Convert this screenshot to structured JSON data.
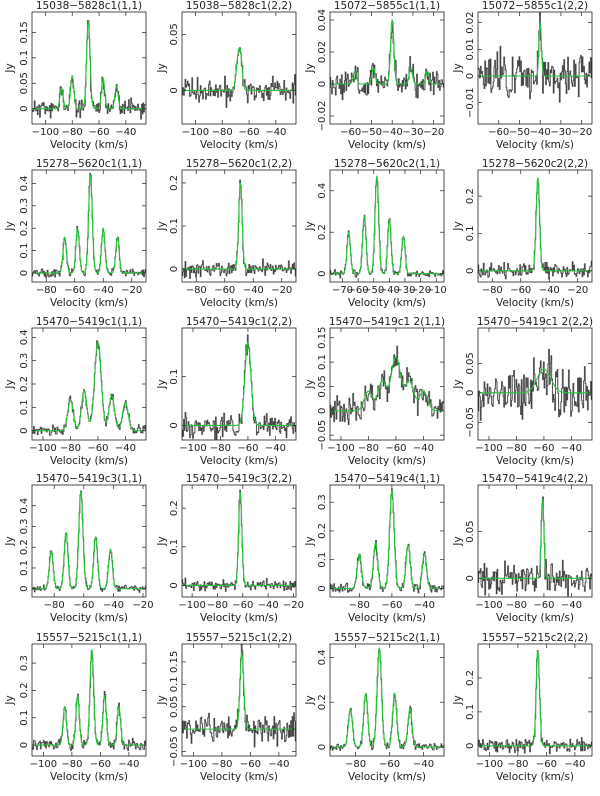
{
  "colors": {
    "data": "#2b2b2b",
    "data_light": "#8a8a8a",
    "fit": "#27c43a",
    "axis": "#222222"
  },
  "chart_data": [
    {
      "type": "line",
      "title": "15038−5828c1(1,1)",
      "xlabel": "Velocity (km/s)",
      "ylabel": "Jy",
      "xlim": [
        -110,
        -25
      ],
      "ylim": [
        -0.03,
        0.19
      ],
      "xticks": [
        -100,
        -80,
        -60,
        -40
      ],
      "yticks": [
        0,
        0.05,
        0.1,
        0.15
      ],
      "ytick_labels": [
        "0",
        "0.05",
        "0.1",
        "0.15"
      ],
      "show_ylabel": true,
      "noise": 0.012,
      "seed": 11,
      "series": [
        {
          "name": "data"
        },
        {
          "name": "fit"
        }
      ],
      "peaks": [
        {
          "x": -88,
          "a": 0.04,
          "w": 1.2
        },
        {
          "x": -80,
          "a": 0.065,
          "w": 1.2
        },
        {
          "x": -68,
          "a": 0.17,
          "w": 1.3
        },
        {
          "x": -57,
          "a": 0.06,
          "w": 1.2
        },
        {
          "x": -47,
          "a": 0.045,
          "w": 1.2
        }
      ]
    },
    {
      "type": "line",
      "title": "15038−5828c1(2,2)",
      "xlabel": "Velocity (km/s)",
      "ylabel": "Jy",
      "xlim": [
        -110,
        -25
      ],
      "ylim": [
        -0.03,
        0.07
      ],
      "xticks": [
        -100,
        -80,
        -60,
        -40
      ],
      "yticks": [
        0,
        0.05
      ],
      "ytick_labels": [
        "0",
        "0.05"
      ],
      "show_ylabel": false,
      "noise": 0.008,
      "seed": 12,
      "series": [
        {
          "name": "data"
        },
        {
          "name": "fit"
        }
      ],
      "peaks": [
        {
          "x": -68,
          "a": 0.03,
          "w": 1.5
        },
        {
          "x": -66,
          "a": 0.02,
          "w": 1.2
        }
      ]
    },
    {
      "type": "line",
      "title": "15072−5855c1(1,1)",
      "xlabel": "Velocity (km/s)",
      "ylabel": "Jy",
      "xlim": [
        -70,
        -15
      ],
      "ylim": [
        -0.025,
        0.045
      ],
      "xticks": [
        -60,
        -50,
        -40,
        -30,
        -20
      ],
      "yticks": [
        -0.02,
        0,
        0.02,
        0.04
      ],
      "ytick_labels": [
        "−0.02",
        "0",
        "0.02",
        "0.04"
      ],
      "show_ylabel": false,
      "noise": 0.006,
      "seed": 13,
      "series": [
        {
          "name": "data"
        },
        {
          "name": "fit"
        }
      ],
      "peaks": [
        {
          "x": -58,
          "a": 0.008,
          "w": 0.8
        },
        {
          "x": -49,
          "a": 0.01,
          "w": 0.8
        },
        {
          "x": -40,
          "a": 0.04,
          "w": 0.8
        },
        {
          "x": -31,
          "a": 0.01,
          "w": 0.8
        },
        {
          "x": -23,
          "a": 0.008,
          "w": 0.8
        }
      ]
    },
    {
      "type": "line",
      "title": "15072−5855c1(2,2)",
      "xlabel": "Velocity (km/s)",
      "ylabel": "Jy",
      "xlim": [
        -70,
        -15
      ],
      "ylim": [
        -0.018,
        0.024
      ],
      "xticks": [
        -60,
        -50,
        -40,
        -30,
        -20
      ],
      "yticks": [
        -0.01,
        0,
        0.01,
        0.02
      ],
      "ytick_labels": [
        "−0.01",
        "0",
        "0.01",
        "0.02"
      ],
      "show_ylabel": false,
      "noise": 0.006,
      "seed": 14,
      "series": [
        {
          "name": "data"
        },
        {
          "name": "fit"
        }
      ],
      "peaks": [
        {
          "x": -40,
          "a": 0.02,
          "w": 0.6
        }
      ]
    },
    {
      "type": "line",
      "title": "15278−5620c1(1,1)",
      "xlabel": "Velocity (km/s)",
      "ylabel": "Jy",
      "xlim": [
        -90,
        -10
      ],
      "ylim": [
        -0.04,
        0.46
      ],
      "xticks": [
        -80,
        -60,
        -40,
        -20
      ],
      "yticks": [
        0,
        0.1,
        0.2,
        0.3,
        0.4
      ],
      "ytick_labels": [
        "0",
        "0.1",
        "0.2",
        "0.3",
        "0.4"
      ],
      "show_ylabel": true,
      "noise": 0.012,
      "seed": 21,
      "series": [
        {
          "name": "data"
        },
        {
          "name": "fit"
        }
      ],
      "peaks": [
        {
          "x": -67,
          "a": 0.16,
          "w": 1.2
        },
        {
          "x": -58,
          "a": 0.2,
          "w": 1.2
        },
        {
          "x": -49,
          "a": 0.44,
          "w": 1.3
        },
        {
          "x": -40,
          "a": 0.2,
          "w": 1.2
        },
        {
          "x": -30,
          "a": 0.16,
          "w": 1.2
        }
      ]
    },
    {
      "type": "line",
      "title": "15278−5620c1(2,2)",
      "xlabel": "Velocity (km/s)",
      "ylabel": "Jy",
      "xlim": [
        -90,
        -10
      ],
      "ylim": [
        -0.03,
        0.23
      ],
      "xticks": [
        -80,
        -60,
        -40,
        -20
      ],
      "yticks": [
        0,
        0.1,
        0.2
      ],
      "ytick_labels": [
        "0",
        "0.1",
        "0.2"
      ],
      "show_ylabel": false,
      "noise": 0.012,
      "seed": 22,
      "series": [
        {
          "name": "data"
        },
        {
          "name": "fit"
        }
      ],
      "peaks": [
        {
          "x": -49,
          "a": 0.2,
          "w": 1.2
        }
      ]
    },
    {
      "type": "line",
      "title": "15278−5620c2(1,1)",
      "xlabel": "Velocity (km/s)",
      "ylabel": "Jy",
      "xlim": [
        -78,
        -5
      ],
      "ylim": [
        -0.04,
        0.5
      ],
      "xticks": [
        -70,
        -60,
        -50,
        -40,
        -30,
        -20,
        -10
      ],
      "yticks": [
        0,
        0.2,
        0.4
      ],
      "ytick_labels": [
        "0",
        "0.2",
        "0.4"
      ],
      "show_ylabel": false,
      "noise": 0.012,
      "seed": 23,
      "series": [
        {
          "name": "data"
        },
        {
          "name": "fit"
        }
      ],
      "peaks": [
        {
          "x": -66,
          "a": 0.2,
          "w": 1.1
        },
        {
          "x": -56,
          "a": 0.28,
          "w": 1.1
        },
        {
          "x": -48,
          "a": 0.47,
          "w": 1.2
        },
        {
          "x": -40,
          "a": 0.26,
          "w": 1.1
        },
        {
          "x": -31,
          "a": 0.18,
          "w": 1.1
        }
      ]
    },
    {
      "type": "line",
      "title": "15278−5620c2(2,2)",
      "xlabel": "Velocity (km/s)",
      "ylabel": "Jy",
      "xlim": [
        -90,
        -10
      ],
      "ylim": [
        -0.03,
        0.27
      ],
      "xticks": [
        -80,
        -60,
        -40,
        -20
      ],
      "yticks": [
        0,
        0.1,
        0.2
      ],
      "ytick_labels": [
        "0",
        "0.1",
        "0.2"
      ],
      "show_ylabel": false,
      "noise": 0.014,
      "seed": 24,
      "series": [
        {
          "name": "data"
        },
        {
          "name": "fit"
        }
      ],
      "peaks": [
        {
          "x": -48,
          "a": 0.25,
          "w": 1.2
        }
      ]
    },
    {
      "type": "line",
      "title": "15470−5419c1(1,1)",
      "xlabel": "Velocity (km/s)",
      "ylabel": "Jy",
      "xlim": [
        -108,
        -25
      ],
      "ylim": [
        -0.04,
        0.44
      ],
      "xticks": [
        -100,
        -80,
        -60,
        -40
      ],
      "yticks": [
        0,
        0.1,
        0.2,
        0.3,
        0.4
      ],
      "ytick_labels": [
        "0",
        "0.1",
        "0.2",
        "0.3",
        "0.4"
      ],
      "show_ylabel": true,
      "noise": 0.014,
      "seed": 31,
      "series": [
        {
          "name": "data"
        },
        {
          "name": "fit"
        }
      ],
      "peaks": [
        {
          "x": -80,
          "a": 0.13,
          "w": 2
        },
        {
          "x": -70,
          "a": 0.17,
          "w": 2
        },
        {
          "x": -60,
          "a": 0.38,
          "w": 2.4
        },
        {
          "x": -50,
          "a": 0.15,
          "w": 2
        },
        {
          "x": -40,
          "a": 0.12,
          "w": 2
        }
      ]
    },
    {
      "type": "line",
      "title": "15470−5419c1(2,2)",
      "xlabel": "Velocity (km/s)",
      "ylabel": "Jy",
      "xlim": [
        -108,
        -25
      ],
      "ylim": [
        -0.03,
        0.2
      ],
      "xticks": [
        -100,
        -80,
        -60,
        -40
      ],
      "yticks": [
        0,
        0.1
      ],
      "ytick_labels": [
        "0",
        "0.1"
      ],
      "show_ylabel": false,
      "noise": 0.016,
      "seed": 32,
      "series": [
        {
          "name": "data"
        },
        {
          "name": "fit"
        }
      ],
      "peaks": [
        {
          "x": -60,
          "a": 0.17,
          "w": 2.2
        }
      ]
    },
    {
      "type": "line",
      "title": "15470−5419c1 2(1,1)",
      "xlabel": "Velocity (km/s)",
      "ylabel": "Jy",
      "xlim": [
        -108,
        -25
      ],
      "ylim": [
        -0.06,
        0.17
      ],
      "xticks": [
        -100,
        -80,
        -60,
        -40
      ],
      "yticks": [
        -0.05,
        0,
        0.05,
        0.1,
        0.15
      ],
      "ytick_labels": [
        "−0.05",
        "0",
        "0.05",
        "0.1",
        "0.15"
      ],
      "show_ylabel": false,
      "noise": 0.02,
      "seed": 33,
      "series": [
        {
          "name": "data"
        },
        {
          "name": "fit"
        }
      ],
      "peaks": [
        {
          "x": -80,
          "a": 0.04,
          "w": 3
        },
        {
          "x": -70,
          "a": 0.06,
          "w": 3
        },
        {
          "x": -60,
          "a": 0.11,
          "w": 3.5
        },
        {
          "x": -50,
          "a": 0.06,
          "w": 3
        },
        {
          "x": -40,
          "a": 0.04,
          "w": 3
        }
      ]
    },
    {
      "type": "line",
      "title": "15470−5419c1 2(2,2)",
      "xlabel": "Velocity (km/s)",
      "ylabel": "Jy",
      "xlim": [
        -108,
        -25
      ],
      "ylim": [
        -0.08,
        0.11
      ],
      "xticks": [
        -100,
        -80,
        -60,
        -40
      ],
      "yticks": [
        -0.05,
        0,
        0.05
      ],
      "ytick_labels": [
        "−0.05",
        "0",
        "0.05"
      ],
      "show_ylabel": false,
      "noise": 0.03,
      "seed": 34,
      "series": [
        {
          "name": "data"
        },
        {
          "name": "fit"
        }
      ],
      "peaks": [
        {
          "x": -60,
          "a": 0.04,
          "w": 5
        }
      ]
    },
    {
      "type": "line",
      "title": "15470−5419c3(1,1)",
      "xlabel": "Velocity (km/s)",
      "ylabel": "Jy",
      "xlim": [
        -95,
        -18
      ],
      "ylim": [
        -0.04,
        0.5
      ],
      "xticks": [
        -80,
        -60,
        -40,
        -20
      ],
      "yticks": [
        0,
        0.1,
        0.2,
        0.3,
        0.4
      ],
      "ytick_labels": [
        "0",
        "0.1",
        "0.2",
        "0.3",
        "0.4"
      ],
      "show_ylabel": true,
      "noise": 0.012,
      "seed": 41,
      "series": [
        {
          "name": "data"
        },
        {
          "name": "fit"
        }
      ],
      "peaks": [
        {
          "x": -82,
          "a": 0.18,
          "w": 1.3
        },
        {
          "x": -72,
          "a": 0.27,
          "w": 1.3
        },
        {
          "x": -62,
          "a": 0.47,
          "w": 1.4
        },
        {
          "x": -52,
          "a": 0.25,
          "w": 1.3
        },
        {
          "x": -42,
          "a": 0.19,
          "w": 1.3
        }
      ]
    },
    {
      "type": "line",
      "title": "15470−5419c3(2,2)",
      "xlabel": "Velocity (km/s)",
      "ylabel": "Jy",
      "xlim": [
        -108,
        -18
      ],
      "ylim": [
        -0.03,
        0.26
      ],
      "xticks": [
        -100,
        -80,
        -60,
        -40,
        -20
      ],
      "yticks": [
        0,
        0.1,
        0.2
      ],
      "ytick_labels": [
        "0",
        "0.1",
        "0.2"
      ],
      "show_ylabel": false,
      "noise": 0.01,
      "seed": 42,
      "series": [
        {
          "name": "data"
        },
        {
          "name": "fit"
        }
      ],
      "peaks": [
        {
          "x": -62,
          "a": 0.24,
          "w": 1.3
        }
      ]
    },
    {
      "type": "line",
      "title": "15470−5419c4(1,1)",
      "xlabel": "Velocity (km/s)",
      "ylabel": "Jy",
      "xlim": [
        -98,
        -28
      ],
      "ylim": [
        -0.03,
        0.36
      ],
      "xticks": [
        -80,
        -60,
        -40
      ],
      "yticks": [
        0,
        0.1,
        0.2,
        0.3
      ],
      "ytick_labels": [
        "0",
        "0.1",
        "0.2",
        "0.3"
      ],
      "show_ylabel": false,
      "noise": 0.012,
      "seed": 43,
      "series": [
        {
          "name": "data"
        },
        {
          "name": "fit"
        }
      ],
      "peaks": [
        {
          "x": -80,
          "a": 0.12,
          "w": 1.3
        },
        {
          "x": -70,
          "a": 0.16,
          "w": 1.3
        },
        {
          "x": -60,
          "a": 0.34,
          "w": 1.4
        },
        {
          "x": -50,
          "a": 0.15,
          "w": 1.3
        },
        {
          "x": -40,
          "a": 0.12,
          "w": 1.3
        }
      ]
    },
    {
      "type": "line",
      "title": "15470−5419c4(2,2)",
      "xlabel": "Velocity (km/s)",
      "ylabel": "Jy",
      "xlim": [
        -108,
        -25
      ],
      "ylim": [
        -0.02,
        0.1
      ],
      "xticks": [
        -100,
        -80,
        -60,
        -40
      ],
      "yticks": [
        0,
        0.05
      ],
      "ytick_labels": [
        "0",
        "0.05"
      ],
      "show_ylabel": false,
      "noise": 0.012,
      "seed": 44,
      "series": [
        {
          "name": "data"
        },
        {
          "name": "fit"
        }
      ],
      "peaks": [
        {
          "x": -61,
          "a": 0.085,
          "w": 1
        }
      ]
    },
    {
      "type": "line",
      "title": "15557−5215c1(1,1)",
      "xlabel": "Velocity (km/s)",
      "ylabel": "Jy",
      "xlim": [
        -108,
        -28
      ],
      "ylim": [
        -0.04,
        0.37
      ],
      "xticks": [
        -100,
        -80,
        -60,
        -40
      ],
      "yticks": [
        0,
        0.1,
        0.2,
        0.3
      ],
      "ytick_labels": [
        "0",
        "0.1",
        "0.2",
        "0.3"
      ],
      "show_ylabel": true,
      "noise": 0.014,
      "seed": 51,
      "series": [
        {
          "name": "data"
        },
        {
          "name": "fit"
        }
      ],
      "peaks": [
        {
          "x": -85,
          "a": 0.14,
          "w": 1.2
        },
        {
          "x": -76,
          "a": 0.18,
          "w": 1.2
        },
        {
          "x": -66,
          "a": 0.35,
          "w": 1.3
        },
        {
          "x": -57,
          "a": 0.18,
          "w": 1.2
        },
        {
          "x": -47,
          "a": 0.14,
          "w": 1.2
        }
      ]
    },
    {
      "type": "line",
      "title": "15557−5215c1(2,2)",
      "xlabel": "Velocity (km/s)",
      "ylabel": "Jy",
      "xlim": [
        -108,
        -28
      ],
      "ylim": [
        -0.06,
        0.19
      ],
      "xticks": [
        -100,
        -80,
        -60,
        -40
      ],
      "yticks": [
        -0.05,
        0,
        0.05,
        0.1,
        0.15
      ],
      "ytick_labels": [
        "−0.05",
        "0",
        "0.05",
        "0.1",
        "0.15"
      ],
      "show_ylabel": false,
      "noise": 0.025,
      "seed": 52,
      "series": [
        {
          "name": "data"
        },
        {
          "name": "fit"
        }
      ],
      "peaks": [
        {
          "x": -66,
          "a": 0.17,
          "w": 1.3
        }
      ]
    },
    {
      "type": "line",
      "title": "15557−5215c2(1,1)",
      "xlabel": "Velocity (km/s)",
      "ylabel": "Jy",
      "xlim": [
        -95,
        -28
      ],
      "ylim": [
        -0.04,
        0.46
      ],
      "xticks": [
        -80,
        -60,
        -40
      ],
      "yticks": [
        0,
        0.2,
        0.4
      ],
      "ytick_labels": [
        "0",
        "0.2",
        "0.4"
      ],
      "show_ylabel": false,
      "noise": 0.012,
      "seed": 53,
      "series": [
        {
          "name": "data"
        },
        {
          "name": "fit"
        }
      ],
      "peaks": [
        {
          "x": -83,
          "a": 0.17,
          "w": 1.2
        },
        {
          "x": -74,
          "a": 0.24,
          "w": 1.2
        },
        {
          "x": -66,
          "a": 0.44,
          "w": 1.3
        },
        {
          "x": -57,
          "a": 0.24,
          "w": 1.2
        },
        {
          "x": -48,
          "a": 0.17,
          "w": 1.2
        }
      ]
    },
    {
      "type": "line",
      "title": "15557−5215c2(2,2)",
      "xlabel": "Velocity (km/s)",
      "ylabel": "Jy",
      "xlim": [
        -108,
        -28
      ],
      "ylim": [
        -0.03,
        0.3
      ],
      "xticks": [
        -100,
        -80,
        -60,
        -40
      ],
      "yticks": [
        0,
        0.1,
        0.2
      ],
      "ytick_labels": [
        "0",
        "0.1",
        "0.2"
      ],
      "show_ylabel": false,
      "noise": 0.014,
      "seed": 54,
      "series": [
        {
          "name": "data"
        },
        {
          "name": "fit"
        }
      ],
      "peaks": [
        {
          "x": -66,
          "a": 0.28,
          "w": 1.2
        }
      ]
    }
  ]
}
